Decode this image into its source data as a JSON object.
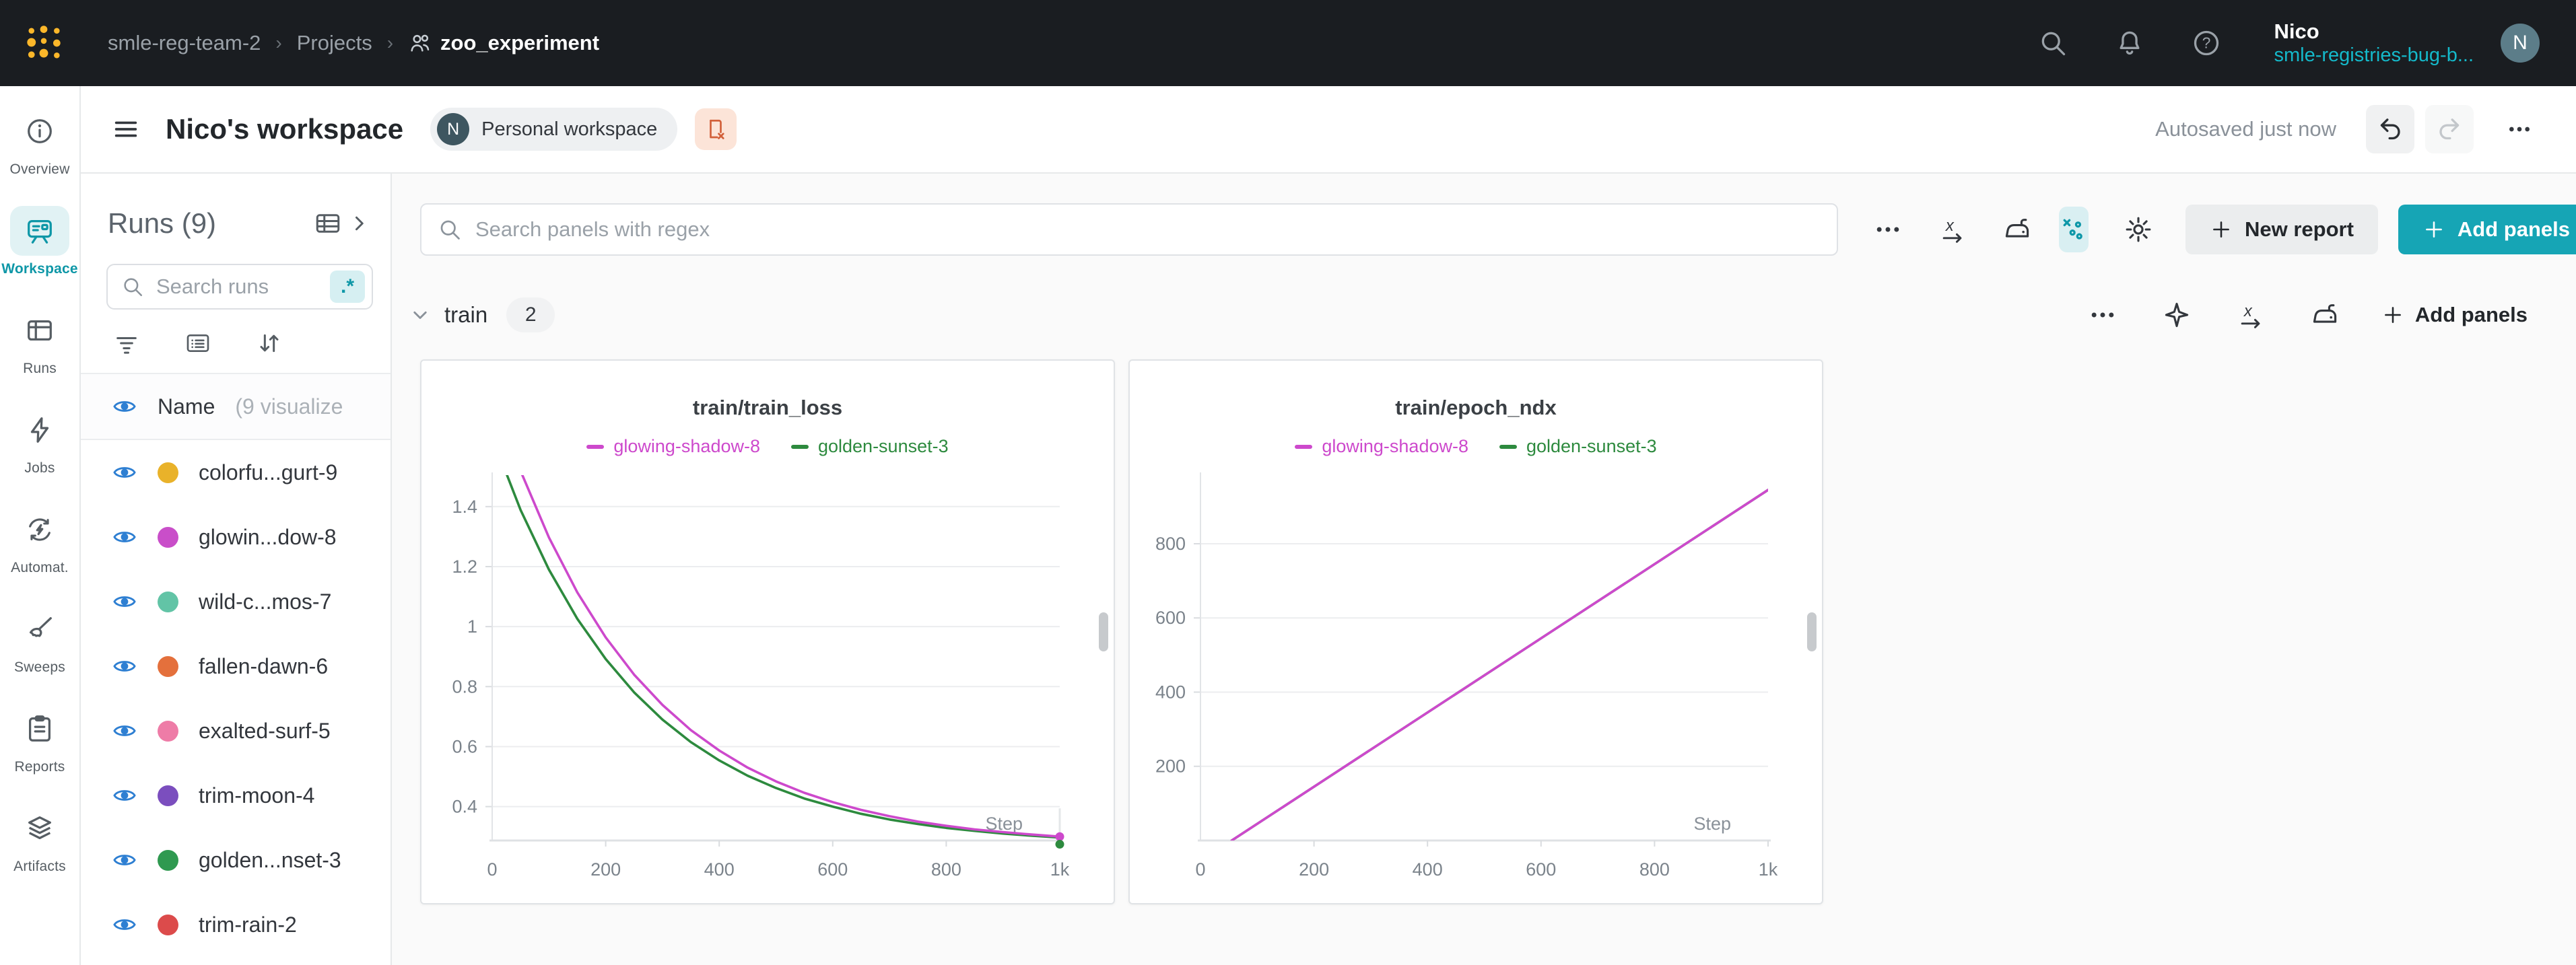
{
  "topbar": {
    "breadcrumb": [
      {
        "label": "smle-reg-team-2"
      },
      {
        "label": "Projects"
      },
      {
        "label": "zoo_experiment"
      }
    ],
    "user": {
      "name": "Nico",
      "team": "smle-registries-bug-b...",
      "initial": "N"
    }
  },
  "title_row": {
    "title": "Nico's workspace",
    "workspace_badge": {
      "initial": "N",
      "label": "Personal workspace"
    },
    "autosaved": "Autosaved just now"
  },
  "nav": {
    "items": [
      {
        "label": "Overview",
        "icon": "info-circle-icon",
        "active": false
      },
      {
        "label": "Workspace",
        "icon": "workspace-board-icon",
        "active": true
      },
      {
        "label": "Runs",
        "icon": "runs-table-icon",
        "active": false
      },
      {
        "label": "Jobs",
        "icon": "lightning-icon",
        "active": false
      },
      {
        "label": "Automat.",
        "icon": "automations-icon",
        "active": false
      },
      {
        "label": "Sweeps",
        "icon": "broom-icon",
        "active": false
      },
      {
        "label": "Reports",
        "icon": "clipboard-icon",
        "active": false
      },
      {
        "label": "Artifacts",
        "icon": "layers-icon",
        "active": false
      }
    ]
  },
  "runs_panel": {
    "header": "Runs (9)",
    "search_placeholder": "Search runs",
    "regex_toggle": ".*",
    "list_header": {
      "name": "Name",
      "suffix": "(9 visualize"
    },
    "runs": [
      {
        "name": "colorfu...gurt-9",
        "color": "#e9b22a"
      },
      {
        "name": "glowin...dow-8",
        "color": "#c94ec9"
      },
      {
        "name": "wild-c...mos-7",
        "color": "#62c4a6"
      },
      {
        "name": "fallen-dawn-6",
        "color": "#e4703c"
      },
      {
        "name": "exalted-surf-5",
        "color": "#ee7ca7"
      },
      {
        "name": "trim-moon-4",
        "color": "#7b4ebe"
      },
      {
        "name": "golden...nset-3",
        "color": "#2f9950"
      },
      {
        "name": "trim-rain-2",
        "color": "#dc4b4b"
      }
    ]
  },
  "toolbar": {
    "search_placeholder": "Search panels with regex",
    "new_report_label": "New report",
    "add_panels_label": "Add panels"
  },
  "section": {
    "title": "train",
    "count": "2",
    "add_panels_label": "Add panels"
  },
  "accent_colors": {
    "teal_button": "#16a5b5",
    "teal_active": "#0e97a7",
    "eye_blue": "#2e7fd2",
    "topbar_bg": "#1a1d21",
    "logo_gold": "#fcb72a"
  },
  "chart_data": [
    {
      "type": "line",
      "title": "train/train_loss",
      "xlabel": "Step",
      "xlim": [
        0,
        1000
      ],
      "x_tick_values": [
        0,
        200,
        400,
        600,
        800,
        1000
      ],
      "x_tick_labels": [
        "0",
        "200",
        "400",
        "600",
        "800",
        "1k"
      ],
      "ylim": [
        0.287,
        1.505
      ],
      "y_ticks": [
        0.4,
        0.6,
        0.8,
        1,
        1.2,
        1.4
      ],
      "grid": true,
      "legend_position": "top",
      "end_markers": true,
      "series": [
        {
          "name": "glowing-shadow-8",
          "color": "#cd49cc",
          "x": [
            0,
            50,
            100,
            150,
            200,
            250,
            300,
            350,
            400,
            450,
            500,
            550,
            600,
            650,
            700,
            750,
            800,
            850,
            900,
            950,
            1000
          ],
          "y": [
            1.79,
            1.519,
            1.297,
            1.114,
            0.964,
            0.84,
            0.739,
            0.655,
            0.587,
            0.53,
            0.484,
            0.446,
            0.415,
            0.389,
            0.368,
            0.35,
            0.336,
            0.324,
            0.315,
            0.307,
            0.3
          ]
        },
        {
          "name": "golden-sunset-3",
          "color": "#2d8a3e",
          "x": [
            0,
            50,
            100,
            150,
            200,
            250,
            300,
            350,
            400,
            450,
            500,
            550,
            600,
            650,
            700,
            750,
            800,
            850,
            900,
            950,
            1000
          ],
          "y": [
            1.632,
            1.389,
            1.19,
            1.026,
            0.892,
            0.781,
            0.69,
            0.615,
            0.554,
            0.503,
            0.462,
            0.427,
            0.4,
            0.376,
            0.357,
            0.342,
            0.329,
            0.319,
            0.31,
            0.303,
            0.297
          ]
        }
      ]
    },
    {
      "type": "line",
      "title": "train/epoch_ndx",
      "xlabel": "Step",
      "xlim": [
        0,
        1000
      ],
      "x_tick_values": [
        0,
        200,
        400,
        600,
        800,
        1000
      ],
      "x_tick_labels": [
        "0",
        "200",
        "400",
        "600",
        "800",
        "1k"
      ],
      "ylim": [
        0,
        985
      ],
      "y_ticks": [
        200,
        400,
        600,
        800
      ],
      "grid": true,
      "legend_position": "top",
      "end_markers": false,
      "series": [
        {
          "name": "glowing-shadow-8",
          "color": "#cd49cc",
          "x": [
            55,
            1000
          ],
          "y": [
            0,
            945
          ]
        },
        {
          "name": "golden-sunset-3",
          "color": "#2d8a3e",
          "x": [
            55,
            1000
          ],
          "y": [
            0,
            945
          ]
        }
      ]
    }
  ]
}
